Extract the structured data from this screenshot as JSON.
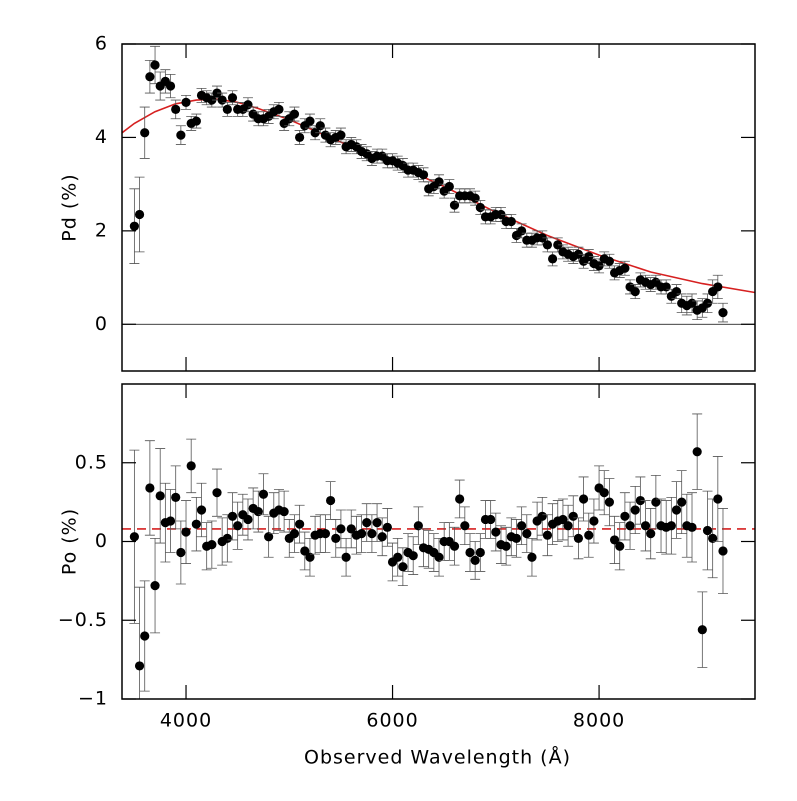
{
  "chart_data": [
    {
      "type": "scatter",
      "ylabel": "Pd (%)",
      "color": "#000000",
      "xlim": [
        3380,
        9510
      ],
      "ylim": [
        -1,
        6
      ],
      "xticks": [
        4000,
        6000,
        8000
      ],
      "yticks": [
        0,
        2,
        4,
        6
      ],
      "x": [
        3500,
        3550,
        3600,
        3650,
        3700,
        3750,
        3800,
        3850,
        3900,
        3950,
        4000,
        4050,
        4100,
        4150,
        4200,
        4250,
        4300,
        4350,
        4400,
        4450,
        4500,
        4550,
        4600,
        4650,
        4700,
        4750,
        4800,
        4850,
        4900,
        4950,
        5000,
        5050,
        5100,
        5150,
        5200,
        5250,
        5300,
        5350,
        5400,
        5450,
        5500,
        5550,
        5600,
        5650,
        5700,
        5750,
        5800,
        5850,
        5900,
        5950,
        6000,
        6050,
        6100,
        6150,
        6200,
        6250,
        6300,
        6350,
        6400,
        6450,
        6500,
        6550,
        6600,
        6650,
        6700,
        6750,
        6800,
        6850,
        6900,
        6950,
        7000,
        7050,
        7100,
        7150,
        7200,
        7250,
        7300,
        7350,
        7400,
        7450,
        7500,
        7550,
        7600,
        7650,
        7700,
        7750,
        7800,
        7850,
        7900,
        7950,
        8000,
        8050,
        8100,
        8150,
        8200,
        8250,
        8300,
        8350,
        8400,
        8450,
        8500,
        8550,
        8600,
        8650,
        8700,
        8750,
        8800,
        8850,
        8900,
        8950,
        9000,
        9050,
        9100,
        9150,
        9200
      ],
      "values": [
        2.1,
        2.35,
        4.1,
        5.3,
        5.55,
        5.1,
        5.2,
        5.1,
        4.6,
        4.05,
        4.75,
        4.3,
        4.35,
        4.9,
        4.85,
        4.8,
        4.95,
        4.8,
        4.6,
        4.85,
        4.6,
        4.6,
        4.7,
        4.5,
        4.4,
        4.4,
        4.45,
        4.55,
        4.6,
        4.3,
        4.4,
        4.5,
        4.0,
        4.25,
        4.35,
        4.1,
        4.25,
        4.05,
        3.95,
        4.0,
        4.05,
        3.8,
        3.85,
        3.8,
        3.7,
        3.65,
        3.55,
        3.6,
        3.6,
        3.5,
        3.5,
        3.45,
        3.4,
        3.3,
        3.3,
        3.25,
        3.2,
        2.9,
        2.95,
        3.05,
        2.85,
        2.95,
        2.55,
        2.75,
        2.75,
        2.75,
        2.7,
        2.5,
        2.3,
        2.3,
        2.35,
        2.35,
        2.2,
        2.2,
        1.9,
        2.0,
        1.8,
        1.8,
        1.85,
        1.85,
        1.7,
        1.4,
        1.7,
        1.55,
        1.5,
        1.45,
        1.5,
        1.35,
        1.45,
        1.3,
        1.25,
        1.4,
        1.35,
        1.1,
        1.15,
        1.2,
        0.8,
        0.7,
        0.95,
        0.9,
        0.85,
        0.9,
        0.8,
        0.8,
        0.6,
        0.7,
        0.45,
        0.4,
        0.45,
        0.3,
        0.35,
        0.45,
        0.7,
        0.8,
        0.25
      ],
      "errors": [
        0.8,
        0.8,
        0.55,
        0.35,
        0.4,
        0.3,
        0.25,
        0.25,
        0.2,
        0.2,
        0.15,
        0.15,
        0.15,
        0.15,
        0.15,
        0.15,
        0.15,
        0.15,
        0.15,
        0.15,
        0.15,
        0.15,
        0.15,
        0.15,
        0.15,
        0.15,
        0.15,
        0.15,
        0.15,
        0.15,
        0.15,
        0.15,
        0.15,
        0.15,
        0.15,
        0.15,
        0.15,
        0.15,
        0.15,
        0.15,
        0.15,
        0.15,
        0.15,
        0.15,
        0.15,
        0.15,
        0.15,
        0.15,
        0.15,
        0.15,
        0.15,
        0.15,
        0.15,
        0.15,
        0.15,
        0.15,
        0.15,
        0.15,
        0.15,
        0.15,
        0.15,
        0.15,
        0.15,
        0.15,
        0.15,
        0.15,
        0.15,
        0.15,
        0.15,
        0.15,
        0.15,
        0.15,
        0.15,
        0.15,
        0.15,
        0.15,
        0.15,
        0.15,
        0.15,
        0.15,
        0.15,
        0.15,
        0.15,
        0.15,
        0.15,
        0.15,
        0.15,
        0.15,
        0.15,
        0.15,
        0.15,
        0.15,
        0.15,
        0.15,
        0.15,
        0.15,
        0.15,
        0.15,
        0.15,
        0.15,
        0.15,
        0.15,
        0.15,
        0.15,
        0.15,
        0.15,
        0.2,
        0.2,
        0.2,
        0.2,
        0.2,
        0.2,
        0.25,
        0.25,
        0.2
      ],
      "fit": {
        "color": "#d62020",
        "x": [
          3380,
          3500,
          3700,
          3900,
          4100,
          4300,
          4500,
          4700,
          5000,
          5500,
          6000,
          6500,
          7000,
          7500,
          8000,
          8500,
          9000,
          9510
        ],
        "values": [
          4.1,
          4.3,
          4.55,
          4.72,
          4.8,
          4.82,
          4.75,
          4.62,
          4.38,
          3.9,
          3.45,
          2.95,
          2.4,
          1.9,
          1.48,
          1.12,
          0.87,
          0.68
        ]
      }
    },
    {
      "type": "scatter",
      "ylabel": "Po (%)",
      "xlabel": "Observed Wavelength (Å)",
      "color": "#000000",
      "xlim": [
        3380,
        9510
      ],
      "ylim": [
        -1,
        1
      ],
      "xticks": [
        4000,
        6000,
        8000
      ],
      "yticks": [
        {
          "value": -1,
          "label": "−1"
        },
        {
          "value": -0.5,
          "label": "−0.5"
        },
        0,
        0.5
      ],
      "x": [
        3500,
        3550,
        3600,
        3650,
        3700,
        3750,
        3800,
        3850,
        3900,
        3950,
        4000,
        4050,
        4100,
        4150,
        4200,
        4250,
        4300,
        4350,
        4400,
        4450,
        4500,
        4550,
        4600,
        4650,
        4700,
        4750,
        4800,
        4850,
        4900,
        4950,
        5000,
        5050,
        5100,
        5150,
        5200,
        5250,
        5300,
        5350,
        5400,
        5450,
        5500,
        5550,
        5600,
        5650,
        5700,
        5750,
        5800,
        5850,
        5900,
        5950,
        6000,
        6050,
        6100,
        6150,
        6200,
        6250,
        6300,
        6350,
        6400,
        6450,
        6500,
        6550,
        6600,
        6650,
        6700,
        6750,
        6800,
        6850,
        6900,
        6950,
        7000,
        7050,
        7100,
        7150,
        7200,
        7250,
        7300,
        7350,
        7400,
        7450,
        7500,
        7550,
        7600,
        7650,
        7700,
        7750,
        7800,
        7850,
        7900,
        7950,
        8000,
        8050,
        8100,
        8150,
        8200,
        8250,
        8300,
        8350,
        8400,
        8450,
        8500,
        8550,
        8600,
        8650,
        8700,
        8750,
        8800,
        8850,
        8900,
        8950,
        9000,
        9050,
        9100,
        9150,
        9200
      ],
      "values": [
        0.03,
        -0.79,
        -0.6,
        0.34,
        -0.28,
        0.29,
        0.12,
        0.13,
        0.28,
        -0.07,
        0.06,
        0.48,
        0.11,
        0.2,
        -0.03,
        -0.02,
        0.31,
        0.0,
        0.02,
        0.16,
        0.1,
        0.17,
        0.14,
        0.21,
        0.19,
        0.3,
        0.03,
        0.18,
        0.2,
        0.19,
        0.02,
        0.05,
        0.11,
        -0.06,
        -0.1,
        0.04,
        0.05,
        0.05,
        0.26,
        0.02,
        0.08,
        -0.1,
        0.08,
        0.04,
        0.05,
        0.12,
        0.05,
        0.12,
        0.03,
        0.09,
        -0.13,
        -0.1,
        -0.16,
        -0.07,
        -0.09,
        0.1,
        -0.04,
        -0.05,
        -0.07,
        -0.1,
        0.0,
        0.0,
        -0.03,
        0.27,
        0.1,
        -0.07,
        -0.12,
        -0.07,
        0.14,
        0.14,
        0.06,
        -0.02,
        -0.03,
        0.03,
        0.02,
        0.1,
        0.05,
        -0.1,
        0.13,
        0.16,
        0.04,
        0.11,
        0.13,
        0.14,
        0.1,
        0.16,
        0.02,
        0.27,
        0.04,
        0.13,
        0.34,
        0.31,
        0.25,
        0.01,
        -0.03,
        0.16,
        0.1,
        0.2,
        0.26,
        0.1,
        0.05,
        0.25,
        0.1,
        0.09,
        0.1,
        0.2,
        0.25,
        0.1,
        0.09,
        0.57,
        -0.56,
        0.07,
        0.02,
        0.27,
        -0.06
      ],
      "errors": [
        0.55,
        0.5,
        0.35,
        0.3,
        0.3,
        0.3,
        0.25,
        0.2,
        0.2,
        0.2,
        0.2,
        0.17,
        0.17,
        0.17,
        0.15,
        0.15,
        0.15,
        0.15,
        0.15,
        0.15,
        0.15,
        0.13,
        0.13,
        0.13,
        0.13,
        0.13,
        0.13,
        0.13,
        0.13,
        0.13,
        0.12,
        0.12,
        0.12,
        0.12,
        0.12,
        0.12,
        0.12,
        0.12,
        0.12,
        0.12,
        0.12,
        0.12,
        0.12,
        0.12,
        0.12,
        0.12,
        0.12,
        0.12,
        0.12,
        0.12,
        0.12,
        0.12,
        0.12,
        0.12,
        0.12,
        0.12,
        0.12,
        0.12,
        0.12,
        0.12,
        0.12,
        0.12,
        0.12,
        0.12,
        0.12,
        0.12,
        0.12,
        0.12,
        0.12,
        0.12,
        0.12,
        0.12,
        0.12,
        0.12,
        0.12,
        0.12,
        0.12,
        0.12,
        0.12,
        0.12,
        0.13,
        0.13,
        0.13,
        0.13,
        0.13,
        0.13,
        0.13,
        0.14,
        0.14,
        0.14,
        0.14,
        0.14,
        0.15,
        0.15,
        0.15,
        0.15,
        0.15,
        0.15,
        0.15,
        0.16,
        0.16,
        0.17,
        0.17,
        0.17,
        0.18,
        0.18,
        0.2,
        0.2,
        0.22,
        0.24,
        0.24,
        0.25,
        0.25,
        0.27,
        0.27
      ],
      "reference": {
        "value": 0.08,
        "color": "#d62020",
        "style": "dashed"
      }
    }
  ]
}
